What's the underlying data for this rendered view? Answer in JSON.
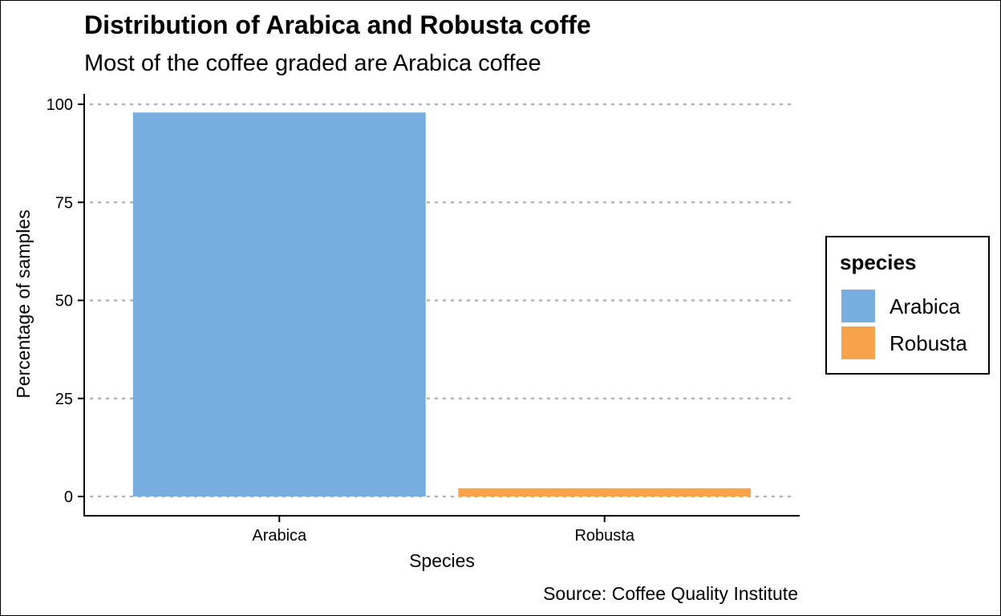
{
  "chart_data": {
    "type": "bar",
    "title": "Distribution of Arabica and Robusta coffe",
    "subtitle": "Most of the coffee graded are Arabica coffee",
    "caption": "Source: Coffee Quality Institute",
    "xlabel": "Species",
    "ylabel": "Percentage of samples",
    "categories": [
      "Arabica",
      "Robusta"
    ],
    "values": [
      97.9,
      2.1
    ],
    "colors": [
      "#78AEDF",
      "#F7A34B"
    ],
    "ylim": [
      0,
      100
    ],
    "yticks": [
      0,
      25,
      50,
      75,
      100
    ],
    "grid": "horizontal dotted",
    "legend": {
      "title": "species",
      "placement": "right",
      "items": [
        {
          "label": "Arabica",
          "color": "#78AEDF"
        },
        {
          "label": "Robusta",
          "color": "#F7A34B"
        }
      ]
    }
  }
}
